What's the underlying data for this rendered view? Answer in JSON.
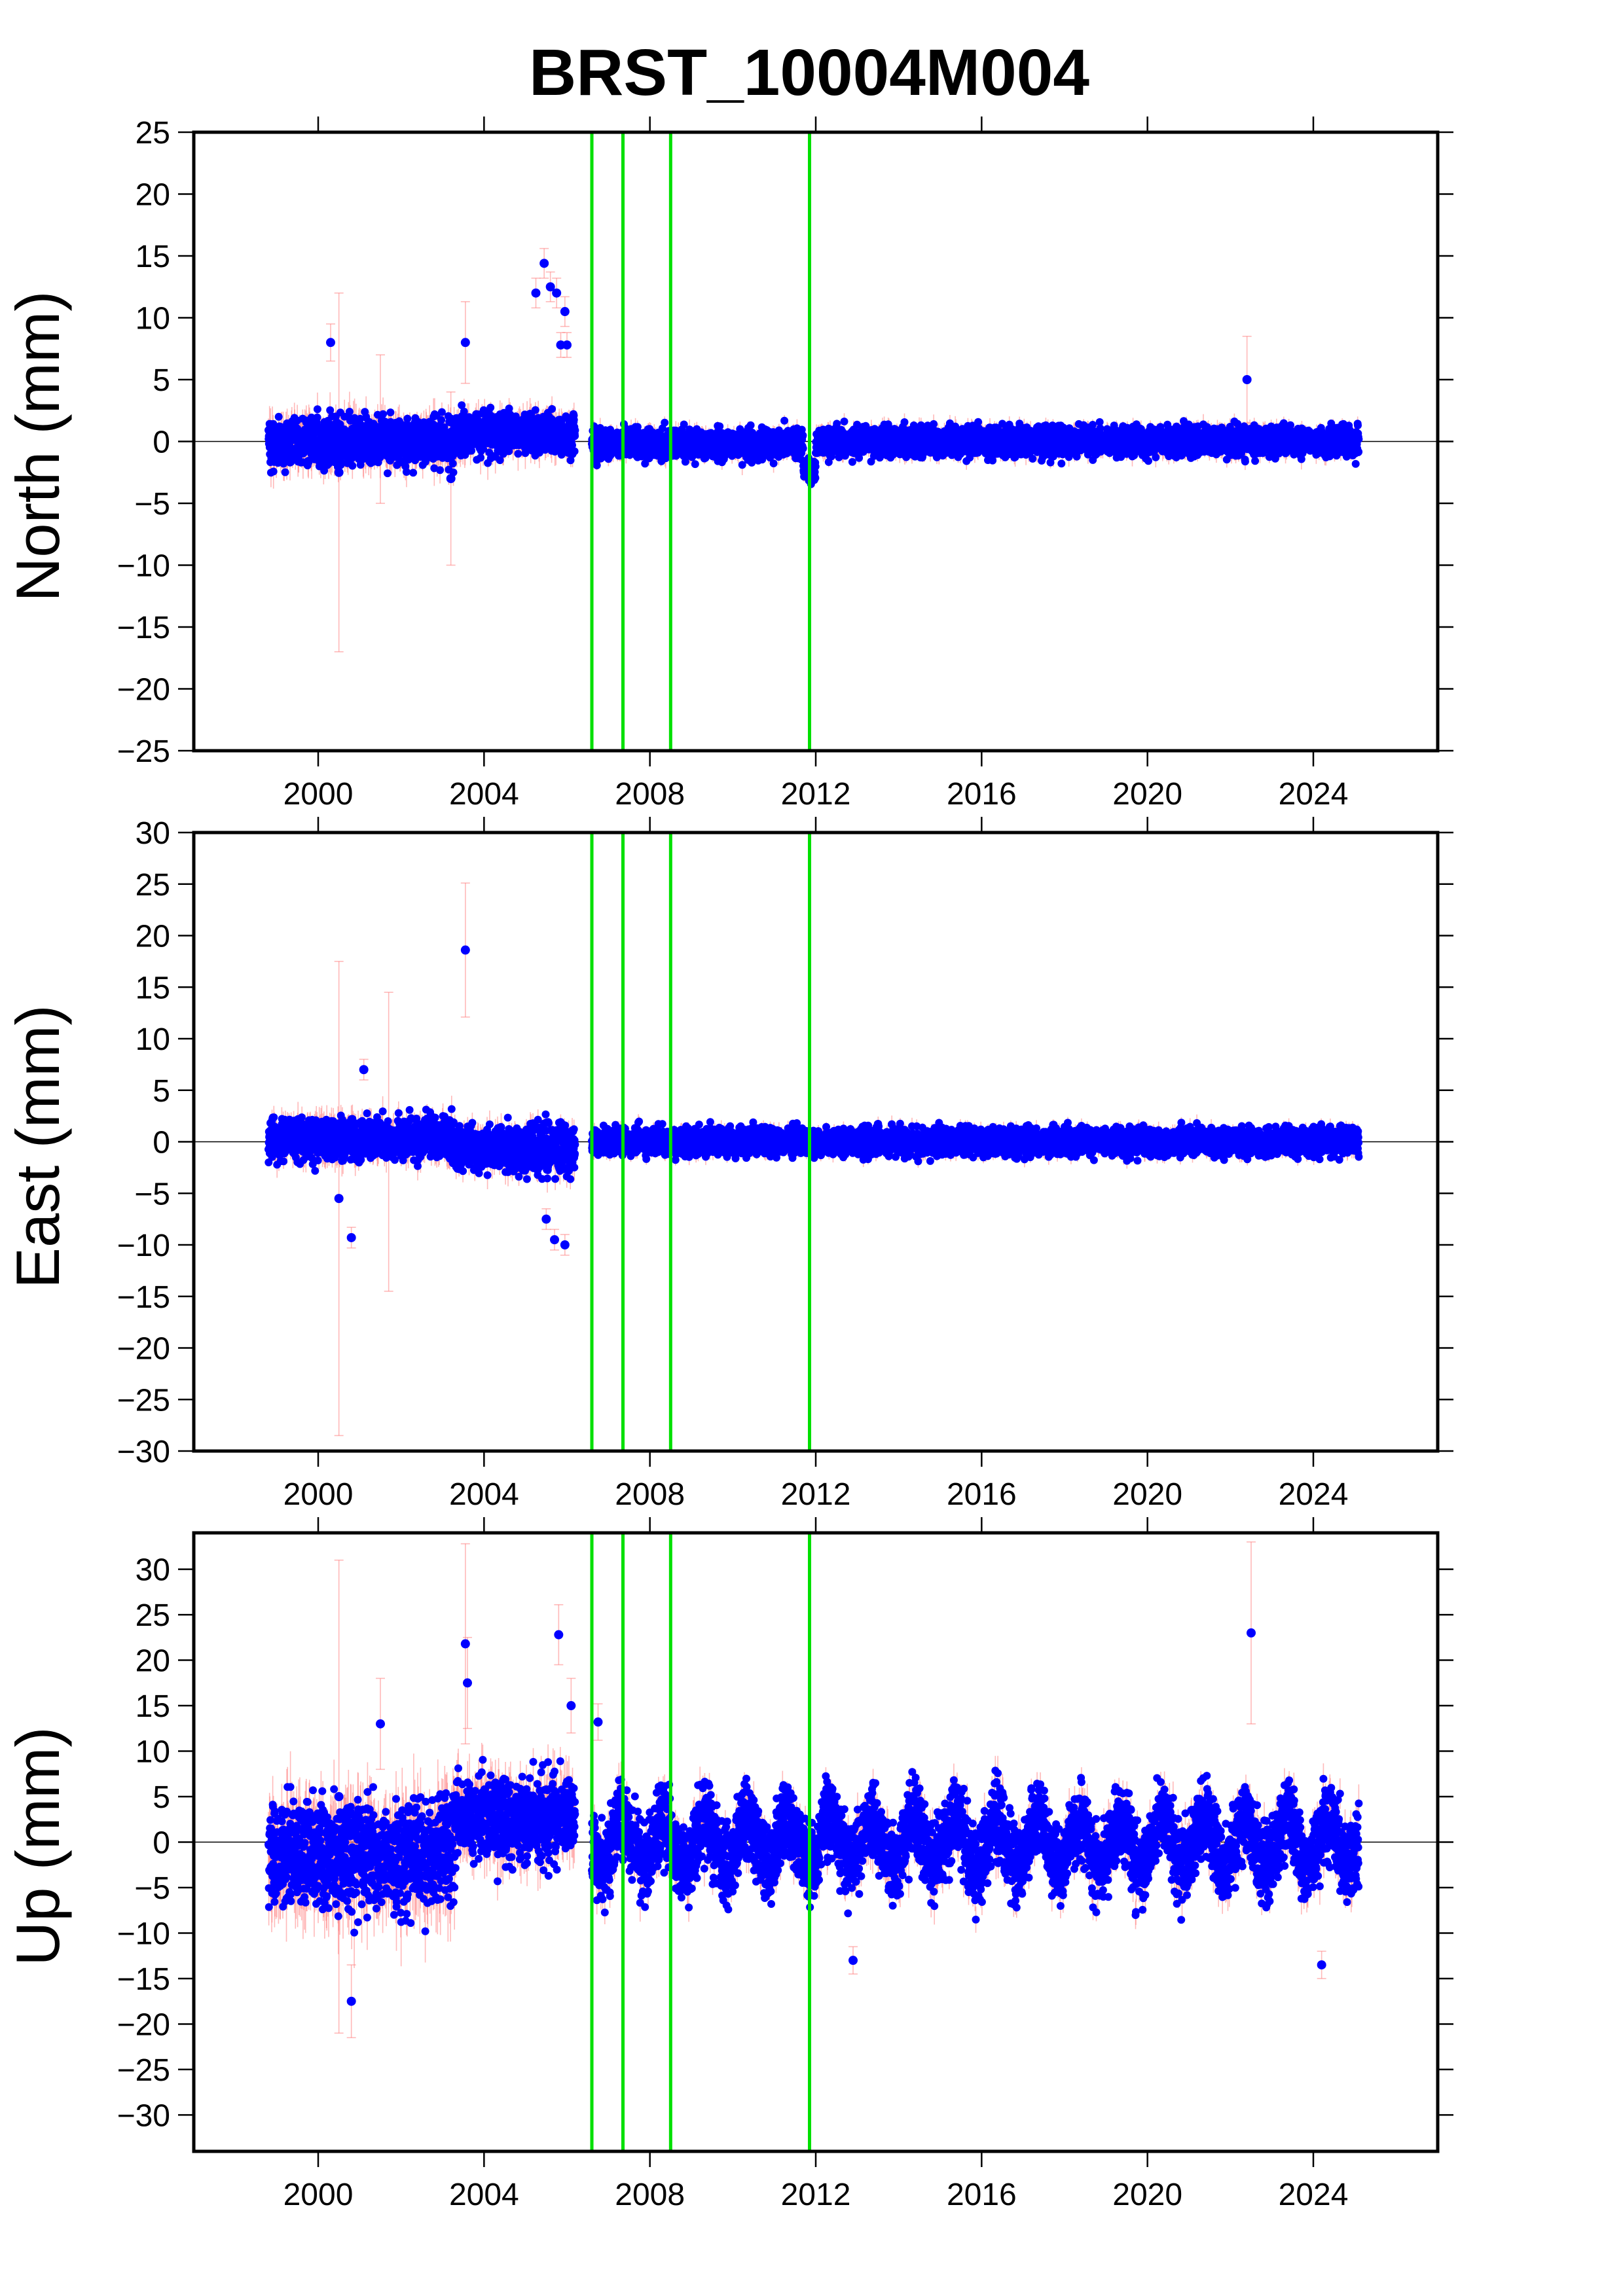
{
  "figure": {
    "title": "BRST_10004M004"
  },
  "chart_data": [
    {
      "type": "scatter",
      "component": "north",
      "ylabel": "North (mm)",
      "xlim": [
        1997.0,
        2027.0
      ],
      "ylim": [
        -25,
        25
      ],
      "xticks": [
        2000,
        2004,
        2008,
        2012,
        2016,
        2020,
        2024
      ],
      "yticks": [
        -25,
        -20,
        -15,
        -10,
        -5,
        0,
        5,
        10,
        15,
        20,
        25
      ],
      "grid": false,
      "reference_line_y": 0,
      "event_lines_x": [
        2006.6,
        2007.35,
        2008.5,
        2011.85
      ],
      "series": [
        {
          "marker": "blue dots with light red error bars",
          "segments": [
            {
              "x": [
                1998.8,
                2003.3
              ],
              "center": 0.0,
              "spread": 1.6,
              "err": 1.2
            },
            {
              "x": [
                2003.3,
                2006.2
              ],
              "center": 0.6,
              "spread": 1.4,
              "err": 1.0
            },
            {
              "x": [
                2006.6,
                2011.7
              ],
              "center": -0.2,
              "spread": 1.0,
              "err": 0.6
            },
            {
              "x": [
                2011.7,
                2012.0
              ],
              "center": -2.2,
              "spread": 1.0,
              "err": 0.6
            },
            {
              "x": [
                2012.0,
                2025.1
              ],
              "center": 0.0,
              "spread": 1.0,
              "err": 0.6
            }
          ],
          "outliers": [
            {
              "x": 2000.3,
              "y": 8.0,
              "err": 1.5
            },
            {
              "x": 2000.5,
              "y": -2.5,
              "err": 14.5
            },
            {
              "x": 2001.5,
              "y": 1.0,
              "err": 6.0
            },
            {
              "x": 2003.2,
              "y": -3.0,
              "err": 7.0
            },
            {
              "x": 2003.55,
              "y": 8.0,
              "err": 3.3
            },
            {
              "x": 2005.25,
              "y": 12.0,
              "err": 1.2
            },
            {
              "x": 2005.45,
              "y": 14.4,
              "err": 1.2
            },
            {
              "x": 2005.6,
              "y": 12.5,
              "err": 1.2
            },
            {
              "x": 2005.75,
              "y": 12.0,
              "err": 1.2
            },
            {
              "x": 2005.95,
              "y": 10.5,
              "err": 1.2
            },
            {
              "x": 2005.85,
              "y": 7.8,
              "err": 1.0
            },
            {
              "x": 2006.0,
              "y": 7.8,
              "err": 1.0
            },
            {
              "x": 2022.4,
              "y": 5.0,
              "err": 3.5
            }
          ]
        }
      ]
    },
    {
      "type": "scatter",
      "component": "east",
      "ylabel": "East (mm)",
      "xlim": [
        1997.0,
        2027.0
      ],
      "ylim": [
        -30,
        30
      ],
      "xticks": [
        2000,
        2004,
        2008,
        2012,
        2016,
        2020,
        2024
      ],
      "yticks": [
        -30,
        -25,
        -20,
        -15,
        -10,
        -5,
        0,
        5,
        10,
        15,
        20,
        25,
        30
      ],
      "grid": false,
      "reference_line_y": 0,
      "event_lines_x": [
        2006.6,
        2007.35,
        2008.5,
        2011.85
      ],
      "series": [
        {
          "marker": "blue dots with light red error bars",
          "segments": [
            {
              "x": [
                1998.8,
                2003.3
              ],
              "center": 0.3,
              "spread": 1.7,
              "err": 1.2
            },
            {
              "x": [
                2003.3,
                2006.2
              ],
              "center": -0.6,
              "spread": 1.8,
              "err": 1.0
            },
            {
              "x": [
                2006.6,
                2025.1
              ],
              "center": 0.0,
              "spread": 1.1,
              "err": 0.6
            }
          ],
          "outliers": [
            {
              "x": 2000.5,
              "y": -5.5,
              "err": 23.0
            },
            {
              "x": 2000.8,
              "y": -9.3,
              "err": 1.0
            },
            {
              "x": 2001.1,
              "y": 7.0,
              "err": 1.0
            },
            {
              "x": 2001.7,
              "y": 0.0,
              "err": 14.5
            },
            {
              "x": 2003.55,
              "y": 18.6,
              "err": 6.5
            },
            {
              "x": 2005.5,
              "y": -7.5,
              "err": 1.0
            },
            {
              "x": 2005.7,
              "y": -9.5,
              "err": 1.0
            },
            {
              "x": 2005.95,
              "y": -10.0,
              "err": 1.0
            }
          ]
        }
      ]
    },
    {
      "type": "scatter",
      "component": "up",
      "ylabel": "Up (mm)",
      "xlim": [
        1997.0,
        2027.0
      ],
      "ylim": [
        -34,
        34
      ],
      "xticks": [
        2000,
        2004,
        2008,
        2012,
        2016,
        2020,
        2024
      ],
      "yticks": [
        -30,
        -25,
        -20,
        -15,
        -10,
        -5,
        0,
        5,
        10,
        15,
        20,
        25,
        30
      ],
      "grid": false,
      "reference_line_y": 0,
      "event_lines_x": [
        2006.6,
        2007.35,
        2008.5,
        2011.85
      ],
      "series": [
        {
          "marker": "blue dots with light red error bars",
          "segments": [
            {
              "x": [
                1998.8,
                2003.3
              ],
              "center": -1.5,
              "spread": 5.0,
              "err": 3.5
            },
            {
              "x": [
                2003.3,
                2006.2
              ],
              "center": 2.5,
              "spread": 3.8,
              "err": 2.5
            },
            {
              "x": [
                2006.6,
                2025.1
              ],
              "center": 0.0,
              "spread": 3.5,
              "err": 1.5
            }
          ],
          "outliers": [
            {
              "x": 2000.5,
              "y": 5.0,
              "err": 26.0
            },
            {
              "x": 2000.8,
              "y": -17.5,
              "err": 4.0
            },
            {
              "x": 2001.5,
              "y": 13.0,
              "err": 5.0
            },
            {
              "x": 2003.55,
              "y": 21.8,
              "err": 11.0
            },
            {
              "x": 2003.6,
              "y": 17.5,
              "err": 5.0
            },
            {
              "x": 2005.8,
              "y": 22.8,
              "err": 3.3
            },
            {
              "x": 2006.1,
              "y": 15.0,
              "err": 3.0
            },
            {
              "x": 2006.75,
              "y": 13.2,
              "err": 2.0
            },
            {
              "x": 2012.9,
              "y": -13.0,
              "err": 1.5
            },
            {
              "x": 2022.5,
              "y": 23.0,
              "err": 10.0
            },
            {
              "x": 2024.2,
              "y": -13.5,
              "err": 1.5
            }
          ]
        }
      ]
    }
  ]
}
